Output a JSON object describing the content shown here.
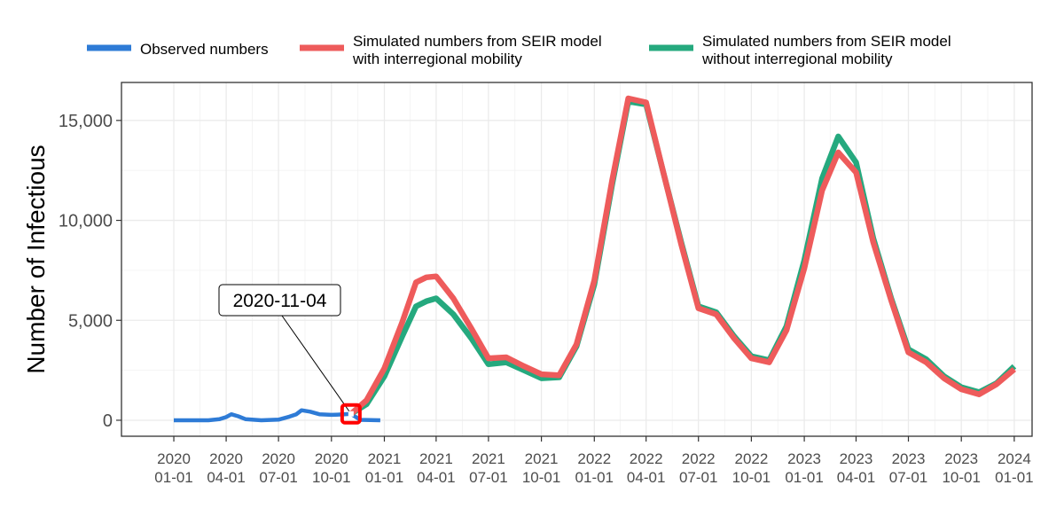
{
  "chart_data": {
    "type": "line",
    "title": "",
    "xlabel": "",
    "ylabel": "Number of Infectious",
    "xlim": [
      "2019-10-02",
      "2024-02-01"
    ],
    "ylim": [
      -800,
      16900
    ],
    "yticks": [
      0,
      5000,
      10000,
      15000
    ],
    "ytick_labels": [
      "0",
      "5,000",
      "10,000",
      "15,000"
    ],
    "xticks": [
      "2020-01-01",
      "2020-04-01",
      "2020-07-01",
      "2020-10-01",
      "2021-01-01",
      "2021-04-01",
      "2021-07-01",
      "2021-10-01",
      "2022-01-01",
      "2022-04-01",
      "2022-07-01",
      "2022-10-01",
      "2023-01-01",
      "2023-04-01",
      "2023-07-01",
      "2023-10-01",
      "2024-01-01"
    ],
    "xtick_labels": [
      [
        "2020",
        "01-01"
      ],
      [
        "2020",
        "04-01"
      ],
      [
        "2020",
        "07-01"
      ],
      [
        "2020",
        "10-01"
      ],
      [
        "2021",
        "01-01"
      ],
      [
        "2021",
        "04-01"
      ],
      [
        "2021",
        "07-01"
      ],
      [
        "2021",
        "10-01"
      ],
      [
        "2022",
        "01-01"
      ],
      [
        "2022",
        "04-01"
      ],
      [
        "2022",
        "07-01"
      ],
      [
        "2022",
        "10-01"
      ],
      [
        "2023",
        "01-01"
      ],
      [
        "2023",
        "04-01"
      ],
      [
        "2023",
        "07-01"
      ],
      [
        "2023",
        "10-01"
      ],
      [
        "2024",
        "01-01"
      ]
    ],
    "grid": true,
    "legend_position": "top",
    "series": [
      {
        "name": "Observed numbers",
        "color": "#2E7BD6",
        "points": [
          [
            "2020-01-01",
            0
          ],
          [
            "2020-02-01",
            0
          ],
          [
            "2020-03-01",
            0
          ],
          [
            "2020-03-20",
            50
          ],
          [
            "2020-04-01",
            160
          ],
          [
            "2020-04-10",
            300
          ],
          [
            "2020-04-22",
            200
          ],
          [
            "2020-05-05",
            50
          ],
          [
            "2020-06-01",
            0
          ],
          [
            "2020-07-01",
            30
          ],
          [
            "2020-07-20",
            180
          ],
          [
            "2020-08-01",
            300
          ],
          [
            "2020-08-10",
            500
          ],
          [
            "2020-08-25",
            430
          ],
          [
            "2020-09-10",
            300
          ],
          [
            "2020-10-01",
            270
          ],
          [
            "2020-10-20",
            290
          ],
          [
            "2020-11-04",
            320
          ],
          [
            "2020-11-20",
            20
          ],
          [
            "2020-12-25",
            0
          ]
        ]
      },
      {
        "name": "Simulated numbers from SEIR model\nwith interregional mobility",
        "color": "#EE5B5B",
        "points": [
          [
            "2020-11-04",
            320
          ],
          [
            "2020-12-01",
            1000
          ],
          [
            "2021-01-01",
            2600
          ],
          [
            "2021-02-01",
            4900
          ],
          [
            "2021-02-25",
            6900
          ],
          [
            "2021-03-15",
            7150
          ],
          [
            "2021-04-01",
            7200
          ],
          [
            "2021-05-01",
            6100
          ],
          [
            "2021-06-01",
            4600
          ],
          [
            "2021-07-01",
            3100
          ],
          [
            "2021-08-01",
            3150
          ],
          [
            "2021-09-01",
            2700
          ],
          [
            "2021-10-01",
            2300
          ],
          [
            "2021-11-01",
            2250
          ],
          [
            "2021-12-01",
            3800
          ],
          [
            "2022-01-01",
            7000
          ],
          [
            "2022-02-01",
            12000
          ],
          [
            "2022-03-01",
            16100
          ],
          [
            "2022-04-01",
            15900
          ],
          [
            "2022-05-01",
            12400
          ],
          [
            "2022-06-01",
            8800
          ],
          [
            "2022-07-01",
            5600
          ],
          [
            "2022-08-01",
            5300
          ],
          [
            "2022-09-01",
            4100
          ],
          [
            "2022-10-01",
            3100
          ],
          [
            "2022-11-01",
            2900
          ],
          [
            "2022-12-01",
            4500
          ],
          [
            "2023-01-01",
            7600
          ],
          [
            "2023-02-01",
            11500
          ],
          [
            "2023-03-01",
            13400
          ],
          [
            "2023-04-01",
            12400
          ],
          [
            "2023-05-01",
            8900
          ],
          [
            "2023-06-01",
            6000
          ],
          [
            "2023-07-01",
            3400
          ],
          [
            "2023-08-01",
            2900
          ],
          [
            "2023-09-01",
            2100
          ],
          [
            "2023-10-01",
            1550
          ],
          [
            "2023-11-01",
            1300
          ],
          [
            "2023-12-01",
            1800
          ],
          [
            "2024-01-01",
            2550
          ]
        ]
      },
      {
        "name": "Simulated numbers from SEIR model\nwithout interregional mobility",
        "color": "#25A97E",
        "points": [
          [
            "2020-11-04",
            320
          ],
          [
            "2020-12-01",
            800
          ],
          [
            "2021-01-01",
            2200
          ],
          [
            "2021-02-01",
            4200
          ],
          [
            "2021-02-25",
            5700
          ],
          [
            "2021-03-15",
            5950
          ],
          [
            "2021-04-01",
            6100
          ],
          [
            "2021-05-01",
            5300
          ],
          [
            "2021-06-01",
            4100
          ],
          [
            "2021-07-01",
            2800
          ],
          [
            "2021-08-01",
            2900
          ],
          [
            "2021-09-01",
            2500
          ],
          [
            "2021-10-01",
            2100
          ],
          [
            "2021-11-01",
            2150
          ],
          [
            "2021-12-01",
            3700
          ],
          [
            "2022-01-01",
            6800
          ],
          [
            "2022-02-01",
            11800
          ],
          [
            "2022-03-01",
            15950
          ],
          [
            "2022-04-01",
            15800
          ],
          [
            "2022-05-01",
            12400
          ],
          [
            "2022-06-01",
            8900
          ],
          [
            "2022-07-01",
            5700
          ],
          [
            "2022-08-01",
            5400
          ],
          [
            "2022-09-01",
            4200
          ],
          [
            "2022-10-01",
            3200
          ],
          [
            "2022-11-01",
            3000
          ],
          [
            "2022-12-01",
            4700
          ],
          [
            "2023-01-01",
            8000
          ],
          [
            "2023-02-01",
            12100
          ],
          [
            "2023-03-01",
            14200
          ],
          [
            "2023-04-01",
            12900
          ],
          [
            "2023-05-01",
            9100
          ],
          [
            "2023-06-01",
            6100
          ],
          [
            "2023-07-01",
            3550
          ],
          [
            "2023-08-01",
            3050
          ],
          [
            "2023-09-01",
            2200
          ],
          [
            "2023-10-01",
            1650
          ],
          [
            "2023-11-01",
            1400
          ],
          [
            "2023-12-01",
            1850
          ],
          [
            "2024-01-01",
            2700
          ]
        ]
      }
    ],
    "annotations": [
      {
        "label": "2020-11-04",
        "x": "2020-11-04",
        "y": 320,
        "marker_color": "#FF0000"
      }
    ]
  }
}
